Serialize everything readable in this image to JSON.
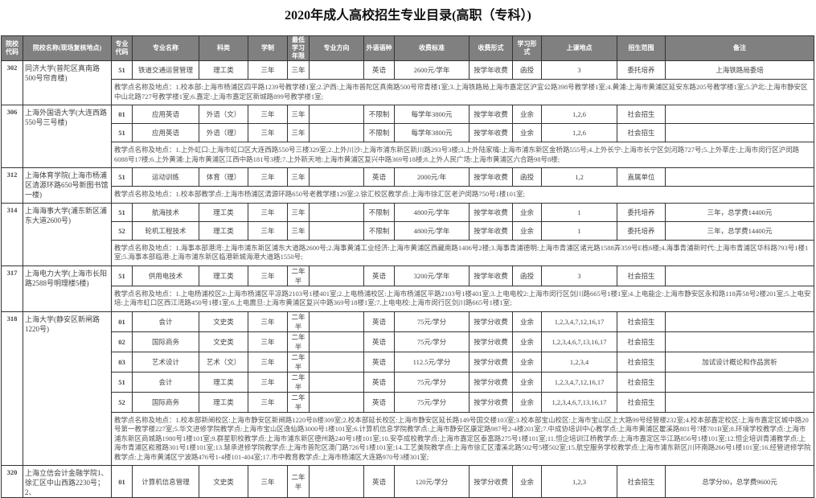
{
  "title": "2020年成人高校招生专业目录(高职（专科）)",
  "headers": [
    "院校代码",
    "院校名称(现场复核地点)",
    "专业代码",
    "专业名称",
    "科类",
    "学制",
    "最低学习年限",
    "专业方向",
    "外语语种",
    "收费标准",
    "收费形式",
    "学习形式",
    "上课地点",
    "招生范围",
    "备注"
  ],
  "colors": {
    "header_bg": "#808080",
    "header_text": "#ffffff",
    "border": "#333333"
  },
  "schools": [
    {
      "code": "302",
      "name": "同济大学(普陀区真南路500号帘青楼)",
      "majors": [
        [
          "51",
          "铁道交通运营管理",
          "理工类",
          "三年",
          "三年",
          "",
          "英语",
          "2600元/学年",
          "按学年收费",
          "函授",
          "3",
          "委托培养",
          "上海铁路局委培"
        ]
      ],
      "notes": "教学点名称及地点：1.校本部:上海市杨浦区四平路1239号教学楼1室;2.沪西:上海市普陀区真南路500号帘青楼1室;3.上海铁路局上海市嘉定区沪宜公路398号教学楼1室;4.黄浦:上海市黄浦区延安东路205号教学楼1室;5.沪北:上海市静安区中山北路727号教学楼1室;6.嘉定:上海市嘉定区新城路899号教学楼1室;"
    },
    {
      "code": "306",
      "name": "上海外国语大学(大连西路550号三号楼)",
      "majors": [
        [
          "01",
          "应用英语",
          "外语（文）",
          "三年",
          "三年",
          "",
          "不限制",
          "每学年3800元",
          "按学年收费",
          "业余",
          "1,2,6",
          "社会招生",
          ""
        ],
        [
          "51",
          "应用英语",
          "外语（理）",
          "三年",
          "三年",
          "",
          "不限制",
          "每学年3800元",
          "按学年收费",
          "业余",
          "1,2,6",
          "社会招生",
          ""
        ]
      ],
      "notes": "教学点名称及地点：1.上外虹口:上海市虹口区大连西路550号三楼329室;2.上外川沙:上海市浦东新区新川路293号3楼;3.上外陆家嘴:上海市浦东新区金桥路555号;4.上外长宁:上海市长宁区剑河路727号;5.上外莘庄:上海市闵行区沪闵路6088号17楼;6.上外黄浦:上海市黄浦区江西中路181号3楼;7.上外新天地:上海市黄浦区复兴中路369号18楼;8.上外人民广场:上海市黄浦区六合路98号8楼;"
    },
    {
      "code": "312",
      "name": "上海体育学院(上海市杨浦区清源环路650号新图书馆一楼)",
      "majors": [
        [
          "51",
          "运动训练",
          "体育（理）",
          "三年",
          "三年",
          "",
          "英语",
          "2000元/年",
          "按学年收费",
          "函授",
          "1,2",
          "直属单位",
          ""
        ]
      ],
      "notes": "教学点名称及地点：1.校本部教学点:上海市杨浦区清源环路650号老教学楼129室;2.徐汇校区教学点:上海市徐汇区老沪闵路750号1楼101室;"
    },
    {
      "code": "314",
      "name": "上海海事大学(浦东新区浦东大道2600号)",
      "majors": [
        [
          "51",
          "航海技术",
          "理工类",
          "三年",
          "三年",
          "",
          "不限制",
          "4800元/学年",
          "按学年收费",
          "业余",
          "1",
          "委托培养",
          "三年，总学费14400元"
        ],
        [
          "52",
          "轮机工程技术",
          "理工类",
          "三年",
          "三年",
          "",
          "不限制",
          "4800元/学年",
          "按学年收费",
          "业余",
          "1",
          "委托培养",
          "三年，总学费14400元"
        ]
      ],
      "notes": "教学点名称及地点：1.海事本部港湾:上海市浦东新区浦东大道路2600号;2.海事黄浦工业经济:上海市黄浦区西藏南路1406号2楼;3.海事青浦德明:上海市青浦区诸光路1588弄359号E栋6楼;4.海事青浦新时代:上海市青浦区华科路793号1楼1室;5.海事本部临港:上海市浦东新区临港新城海港大道路1550号;"
    },
    {
      "code": "317",
      "name": "上海电力大学(上海市长阳路2588号明理楼5楼)",
      "majors": [
        [
          "51",
          "供用电技术",
          "理工类",
          "三年",
          "二年半",
          "",
          "英语",
          "3200元/学年",
          "按学年收费",
          "函授",
          "3",
          "社会招生",
          ""
        ]
      ],
      "notes": "教学点名称及地点：1.上电杨浦校区2:上海市杨浦区平凉路2103号1楼401室;2.上电杨浦校区:上海市杨浦区平路2103号1楼401室;3.上电电校2:上海市闵行区剑川路665号1楼1室;4.上电能企:上海市静安区永和路118弄58号2楼201室;5.上电安培:上海市虹口区西江湾路450号1楼1室;6.上电震旦:上海市黄浦区复兴中路369号18楼1室;7.上电电校:上海市闵行区剑川路665号1楼1室;"
    },
    {
      "code": "318",
      "name": "上海大学(静安区新闸路1220号)",
      "majors": [
        [
          "01",
          "会计",
          "文史类",
          "三年",
          "二年半",
          "",
          "英语",
          "75元/学分",
          "按学分收费",
          "业余",
          "1,2,3,4,7,12,16,17",
          "社会招生",
          ""
        ],
        [
          "02",
          "国际商务",
          "文史类",
          "三年",
          "二年半",
          "",
          "英语",
          "75元/学分",
          "按学分收费",
          "业余",
          "1,2,3,4,6,7,13,16,17",
          "社会招生",
          ""
        ],
        [
          "03",
          "艺术设计",
          "艺术（文）",
          "三年",
          "二年半",
          "",
          "英语",
          "112.5元/学分",
          "按学分收费",
          "业余",
          "1,2,3,4",
          "社会招生",
          "加试设计概论和作品赏析"
        ],
        [
          "51",
          "会计",
          "理工类",
          "三年",
          "二年半",
          "",
          "英语",
          "75元/学分",
          "按学分收费",
          "业余",
          "1,2,3,4,7,12,16,17",
          "社会招生",
          ""
        ],
        [
          "52",
          "国际商务",
          "理工类",
          "三年",
          "二年半",
          "",
          "英语",
          "75元/学分",
          "按学分收费",
          "业余",
          "1,2,3,4,6,7,13,16,17",
          "社会招生",
          ""
        ]
      ],
      "notes": "教学点名称及地点：1.校本部新闸校区:上海市静安区新闸路1220号B楼309室;2.校本部延长校区:上海市静安区延长路149号国交楼103室;3.校本部宝山校区:上海市宝山区上大路99号经管楼232室;4.校本部嘉定校区:上海市嘉定区城中路20号第一教学楼227室;5.华文进修学院教学点:上海市宝山区逸仙路3000号1楼101室;6.计算机信息学院教学点:上海市静安区康定路987号2-4楼201室;7.中成协培训中心教学点:上海市黄浦区瞿溪路801号7楼701B室;8.环境学校教学点:上海市浦东新区商城路1980号1楼101室;9.群星职校教学点:上海市浦东新区德州路240号1楼101室;10.安亭成校教学点:上海市嘉定区泰富路275号1楼101室;11.恒企培训江桥教学点:上海市嘉定区华江路856号1楼101室;12.恒企培训青浦教学点:上海市青浦区崧雅路301号1楼101室;13.慧承进修学院教学点:上海市普陀区澳门路726号1楼101室;14.工艺美院教学点:上海市徐汇区漕溪北路502号5楼502室;15.航空服务学校教学点:上海市浦东新区川环南路266号1楼101室;16.经管进修学院教学点:上海市黄浦区宁波路476号1-4楼101-404室;17.市中教育教学点:上海市杨浦区大连路970号3楼301室;"
    },
    {
      "code": "320",
      "name": "上海立信会计金融学院1、徐汇区中山西路2230号；2、",
      "majors": [
        [
          "01",
          "计算机信息管理",
          "文史类",
          "三年",
          "二年半",
          "",
          "英语",
          "120元/学分",
          "按学分收费",
          "业余",
          "1,2,3",
          "社会招生",
          "总学分80，总学费9600元"
        ]
      ],
      "notes": ""
    }
  ]
}
